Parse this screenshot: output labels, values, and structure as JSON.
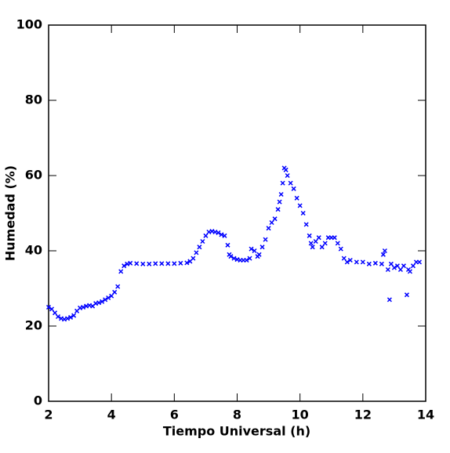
{
  "chart_data": {
    "type": "scatter",
    "x_label": "Tiempo Universal (h)",
    "y_label": "Humedad (%)",
    "x": [
      2.0,
      2.1,
      2.2,
      2.3,
      2.4,
      2.5,
      2.6,
      2.7,
      2.8,
      2.9,
      3.0,
      3.1,
      3.2,
      3.3,
      3.4,
      3.5,
      3.6,
      3.7,
      3.8,
      3.9,
      4.0,
      4.1,
      4.2,
      4.3,
      4.4,
      4.5,
      4.6,
      4.8,
      5.0,
      5.2,
      5.4,
      5.6,
      5.8,
      6.0,
      6.2,
      6.4,
      6.5,
      6.6,
      6.7,
      6.8,
      6.9,
      7.0,
      7.1,
      7.2,
      7.3,
      7.4,
      7.5,
      7.6,
      7.7,
      7.75,
      7.8,
      7.9,
      8.0,
      8.1,
      8.2,
      8.3,
      8.4,
      8.45,
      8.55,
      8.65,
      8.7,
      8.8,
      8.9,
      9.0,
      9.1,
      9.2,
      9.3,
      9.35,
      9.4,
      9.45,
      9.5,
      9.55,
      9.6,
      9.7,
      9.8,
      9.9,
      10.0,
      10.1,
      10.2,
      10.3,
      10.35,
      10.4,
      10.5,
      10.6,
      10.7,
      10.8,
      10.9,
      11.0,
      11.1,
      11.2,
      11.3,
      11.4,
      11.5,
      11.6,
      11.8,
      12.0,
      12.2,
      12.4,
      12.6,
      12.65,
      12.7,
      12.8,
      12.85,
      12.9,
      13.0,
      13.1,
      13.2,
      13.3,
      13.4,
      13.45,
      13.5,
      13.6,
      13.7,
      13.8
    ],
    "series": [
      {
        "name": "Humedad",
        "color": "#0000ff",
        "values": [
          25,
          24.5,
          23.5,
          22.5,
          22,
          21.8,
          22,
          22.3,
          22.8,
          24,
          24.8,
          25,
          25.3,
          25.5,
          25.3,
          26,
          26.2,
          26.5,
          27,
          27.5,
          28,
          29,
          30.5,
          34.5,
          36,
          36.5,
          36.7,
          36.6,
          36.5,
          36.5,
          36.6,
          36.6,
          36.6,
          36.6,
          36.7,
          36.8,
          37.2,
          38,
          39.5,
          41,
          42.5,
          44,
          45,
          45.2,
          45,
          44.8,
          44.3,
          44,
          41.5,
          39,
          38.5,
          38,
          37.7,
          37.5,
          37.5,
          37.5,
          38,
          40.5,
          40,
          38.5,
          39,
          41,
          43,
          46,
          47.5,
          48.5,
          51,
          53,
          55,
          58,
          62,
          61.5,
          60,
          58,
          56.5,
          54,
          52,
          50,
          47,
          44,
          42,
          41,
          42.5,
          43.5,
          41,
          42,
          43.5,
          43.5,
          43.5,
          42,
          40.5,
          38,
          37,
          37.5,
          37,
          37,
          36.5,
          36.7,
          36.5,
          39,
          40,
          35,
          27,
          36.5,
          35.5,
          36,
          35,
          36,
          28.3,
          35,
          34.5,
          36,
          37,
          37
        ]
      }
    ],
    "xlim": [
      2,
      14
    ],
    "ylim": [
      0,
      100
    ],
    "xticks": [
      2,
      4,
      6,
      8,
      10,
      12,
      14
    ],
    "yticks": [
      0,
      20,
      40,
      60,
      80,
      100
    ]
  }
}
